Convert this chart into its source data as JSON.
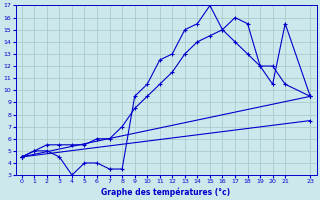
{
  "title": "Graphe des températures (°c)",
  "bg_color": "#cce8ec",
  "grid_color": "#aacccc",
  "line_color": "#0000cc",
  "xlim": [
    -0.5,
    23.5
  ],
  "ylim": [
    3,
    17
  ],
  "xticks": [
    0,
    1,
    2,
    3,
    4,
    5,
    6,
    7,
    8,
    9,
    10,
    11,
    12,
    13,
    14,
    15,
    16,
    17,
    18,
    19,
    20,
    21,
    23
  ],
  "yticks": [
    3,
    4,
    5,
    6,
    7,
    8,
    9,
    10,
    11,
    12,
    13,
    14,
    15,
    16,
    17
  ],
  "line1_jagged": {
    "x": [
      0,
      1,
      2,
      3,
      4,
      5,
      6,
      7,
      8,
      9,
      10,
      11,
      12,
      13,
      14,
      15,
      16,
      17,
      18,
      19,
      20,
      21,
      23
    ],
    "y": [
      4.5,
      5.0,
      5.0,
      4.5,
      3.0,
      4.0,
      4.0,
      3.5,
      3.5,
      9.5,
      10.5,
      12.5,
      13.0,
      15.0,
      15.5,
      17.0,
      15.0,
      16.0,
      15.5,
      12.0,
      10.5,
      15.5,
      9.5
    ]
  },
  "line2_mid": {
    "x": [
      0,
      1,
      2,
      3,
      4,
      5,
      6,
      7,
      8,
      9,
      10,
      11,
      12,
      13,
      14,
      15,
      16,
      17,
      18,
      19,
      20,
      21,
      23
    ],
    "y": [
      4.5,
      5.0,
      5.5,
      5.5,
      5.5,
      5.5,
      6.0,
      6.0,
      7.0,
      8.5,
      9.5,
      10.5,
      11.5,
      13.0,
      14.0,
      14.5,
      15.0,
      14.0,
      13.0,
      12.0,
      12.0,
      10.5,
      9.5
    ]
  },
  "line3_upper": {
    "x": [
      0,
      23
    ],
    "y": [
      4.5,
      9.5
    ]
  },
  "line4_lower": {
    "x": [
      0,
      23
    ],
    "y": [
      4.5,
      7.5
    ]
  }
}
